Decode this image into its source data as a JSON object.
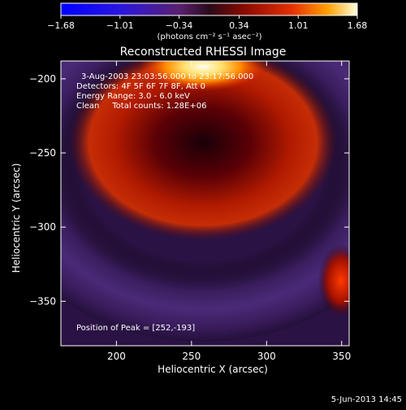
{
  "chart_data": {
    "type": "heatmap",
    "title": "Reconstructed RHESSI Image",
    "xlabel": "Heliocentric X (arcsec)",
    "ylabel": "Heliocentric Y (arcsec)",
    "xlim": [
      163,
      355
    ],
    "ylim": [
      -380,
      -188
    ],
    "x_ticks": [
      200,
      250,
      300,
      350
    ],
    "y_ticks": [
      -200,
      -250,
      -300,
      -350
    ],
    "x_tick_labels": [
      "200",
      "250",
      "300",
      "350"
    ],
    "y_tick_labels": [
      "−200",
      "−250",
      "−300",
      "−350"
    ],
    "colorbar": {
      "min": -1.68,
      "max": 1.68,
      "tick_values": [
        -1.68,
        -1.01,
        -0.34,
        0.34,
        1.01,
        1.68
      ],
      "tick_labels": [
        "−1.68",
        "−1.01",
        "−0.34",
        "0.34",
        "1.01",
        "1.68"
      ],
      "units": "(photons cm⁻² s⁻¹ asec⁻²)"
    },
    "annotations": [
      "3-Aug-2003 23:03:56.000 to 23:17:56.000",
      "Detectors: 4F 5F 6F 7F 8F, Att 0",
      "Energy Range: 3.0 - 6.0 keV",
      "Clean     Total counts: 1.28E+06"
    ],
    "peak_label": "Position of Peak = [252,-193]",
    "peak": {
      "x": 252,
      "y": -193
    },
    "footer_date": "5-Jun-2013 14:45"
  }
}
